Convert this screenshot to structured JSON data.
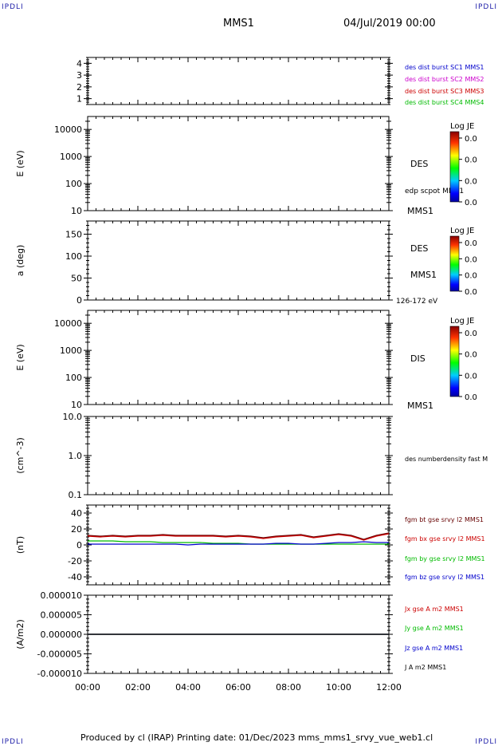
{
  "header": {
    "corner_tl": "IPDLI",
    "corner_tr": "IPDLI",
    "corner_bl": "IPDLI",
    "corner_br": "IPDLI",
    "spacecraft": "MMS1",
    "datetime": "04/Jul/2019 00:00"
  },
  "footer": {
    "text": "Produced by cl (IRAP)   Printing date: 01/Dec/2023   mms_mms1_srvy_vue_web1.cl"
  },
  "colors": {
    "blue": "#0000cc",
    "magenta": "#cc00cc",
    "red": "#cc0000",
    "green": "#00bb00",
    "black": "#000000",
    "darkred": "#660000"
  },
  "chart_data": [
    {
      "type": "line",
      "panel": "mms-availability",
      "ylabel": "",
      "ylim": [
        0.5,
        4.5
      ],
      "yticks": [
        "1",
        "2",
        "3",
        "4"
      ],
      "ytick_values": [
        1,
        2,
        3,
        4
      ],
      "legend": [
        {
          "label": "des dist burst SC1 MMS1",
          "color": "#0000cc"
        },
        {
          "label": "des dist burst SC2 MMS2",
          "color": "#cc00cc"
        },
        {
          "label": "des dist burst SC3 MMS3",
          "color": "#cc0000"
        },
        {
          "label": "des dist burst SC4 MMS4",
          "color": "#00bb00"
        }
      ]
    },
    {
      "type": "heatmap",
      "panel": "des-energy-spectrogram",
      "ylabel": "E (eV)",
      "yscale": "log",
      "ylim": [
        10,
        30000
      ],
      "yticks": [
        "10",
        "100",
        "1000",
        "10000"
      ],
      "ytick_values": [
        10,
        100,
        1000,
        10000
      ],
      "right_labels": [
        "DES",
        "edp scpot MMS1",
        "MMS1"
      ],
      "colorbar": {
        "title": "Log JE",
        "ticks": [
          "0.0",
          "0.0",
          "0.0",
          "0.0"
        ]
      }
    },
    {
      "type": "heatmap",
      "panel": "des-pitch-angle",
      "ylabel": "a (deg)",
      "ylim": [
        0,
        180
      ],
      "yticks": [
        "0",
        "50",
        "100",
        "150"
      ],
      "ytick_values": [
        0,
        50,
        100,
        150
      ],
      "right_labels": [
        "DES",
        "MMS1",
        "126-172 eV"
      ],
      "colorbar": {
        "title": "Log JE",
        "ticks": [
          "0.0",
          "0.0",
          "0.0",
          "0.0"
        ]
      }
    },
    {
      "type": "heatmap",
      "panel": "dis-energy-spectrogram",
      "ylabel": "E (eV)",
      "yscale": "log",
      "ylim": [
        10,
        30000
      ],
      "yticks": [
        "10",
        "100",
        "1000",
        "10000"
      ],
      "ytick_values": [
        10,
        100,
        1000,
        10000
      ],
      "right_labels": [
        "DIS",
        "MMS1"
      ],
      "colorbar": {
        "title": "Log JE",
        "ticks": [
          "0.0",
          "0.0",
          "0.0",
          "0.0"
        ]
      }
    },
    {
      "type": "line",
      "panel": "density",
      "ylabel": "(cm^-3)",
      "yscale": "log",
      "ylim": [
        0.1,
        10
      ],
      "yticks": [
        "0.1",
        "1.0",
        "10.0"
      ],
      "ytick_values": [
        0.1,
        1,
        10
      ],
      "legend": [
        {
          "label": "des numberdensity fast M",
          "color": "#000000"
        }
      ]
    },
    {
      "type": "line",
      "panel": "magnetic-field",
      "ylabel": "(nT)",
      "ylim": [
        -50,
        50
      ],
      "yticks": [
        "-40",
        "-20",
        "0",
        "20",
        "40"
      ],
      "ytick_values": [
        -40,
        -20,
        0,
        20,
        40
      ],
      "x": [
        0,
        0.5,
        1,
        1.5,
        2,
        2.5,
        3,
        3.5,
        4,
        4.5,
        5,
        5.5,
        6,
        6.5,
        7,
        7.5,
        8,
        8.5,
        9,
        9.5,
        10,
        10.5,
        11,
        11.5,
        12
      ],
      "series": [
        {
          "name": "fgm bt gse srvy l2 MMS1",
          "color": "#660000",
          "values": [
            12,
            11,
            12,
            11,
            12,
            12,
            13,
            12,
            12,
            12,
            12,
            11,
            12,
            11,
            9,
            11,
            12,
            13,
            10,
            12,
            14,
            12,
            7,
            12,
            15
          ]
        },
        {
          "name": "fgm bx gse srvy l2 MMS1",
          "color": "#cc0000",
          "values": [
            11,
            10,
            11,
            10,
            11,
            11,
            12,
            11,
            11,
            11,
            11,
            10,
            11,
            10,
            8,
            10,
            11,
            12,
            9,
            11,
            13,
            11,
            6,
            11,
            14
          ]
        },
        {
          "name": "fgm by gse srvy l2 MMS1",
          "color": "#00bb00",
          "values": [
            5,
            5,
            5,
            4,
            4,
            4,
            3,
            3,
            3,
            3,
            2,
            2,
            2,
            1,
            1,
            1,
            1,
            1,
            1,
            1,
            1,
            1,
            1,
            1,
            1
          ]
        },
        {
          "name": "fgm bz gse srvy l2 MMS1",
          "color": "#0000cc",
          "values": [
            1,
            1,
            1,
            1,
            1,
            1,
            1,
            1,
            0,
            1,
            1,
            1,
            1,
            1,
            1,
            2,
            2,
            1,
            1,
            2,
            3,
            3,
            4,
            3,
            3
          ]
        }
      ]
    },
    {
      "type": "line",
      "panel": "current-density",
      "ylabel": "(A/m2)",
      "ylim": [
        -1e-05,
        1e-05
      ],
      "yticks": [
        "-0.000010",
        "-0.000005",
        "0.000000",
        "0.000005",
        "0.000010"
      ],
      "ytick_values": [
        -1e-05,
        -5e-06,
        0,
        5e-06,
        1e-05
      ],
      "x": [
        0,
        12
      ],
      "series": [
        {
          "name": "Jx gse A m2 MMS1",
          "color": "#cc0000",
          "values": [
            0,
            0
          ]
        },
        {
          "name": "Jy gse A m2 MMS1",
          "color": "#00bb00",
          "values": [
            0,
            0
          ]
        },
        {
          "name": "Jz gse A m2 MMS1",
          "color": "#0000cc",
          "values": [
            0,
            0
          ]
        },
        {
          "name": "J A m2 MMS1",
          "color": "#000000",
          "values": [
            0,
            0
          ]
        }
      ]
    }
  ],
  "xaxis": {
    "xlim": [
      0,
      12
    ],
    "ticks": [
      "00:00",
      "02:00",
      "04:00",
      "06:00",
      "08:00",
      "10:00",
      "12:00"
    ],
    "tick_values": [
      0,
      2,
      4,
      6,
      8,
      10,
      12
    ]
  }
}
